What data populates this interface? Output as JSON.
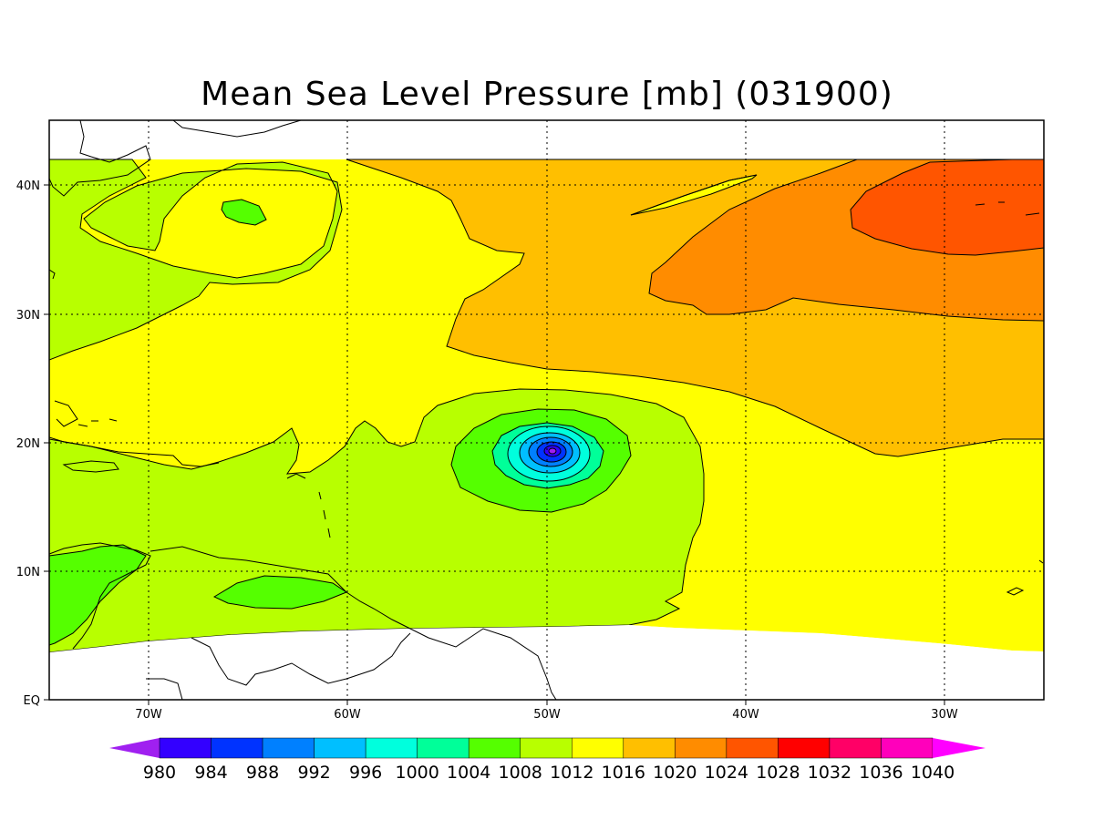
{
  "title": "Mean Sea Level Pressure [mb] (031900)",
  "lon_labels": [
    "70W",
    "60W",
    "50W",
    "40W",
    "30W"
  ],
  "lat_labels": [
    "EQ",
    "10N",
    "20N",
    "30N",
    "40N"
  ],
  "colorbar": {
    "labels": [
      "980",
      "984",
      "988",
      "992",
      "996",
      "1000",
      "1004",
      "1008",
      "1012",
      "1016",
      "1020",
      "1024",
      "1028",
      "1032",
      "1036",
      "1040"
    ],
    "colors": [
      "#a020f0",
      "#3300ff",
      "#0033ff",
      "#0080ff",
      "#00bfff",
      "#00ffdd",
      "#00ff99",
      "#55ff00",
      "#b8ff00",
      "#ffff00",
      "#ffbf00",
      "#ff8c00",
      "#ff5500",
      "#ff0000",
      "#ff0066",
      "#ff00bb",
      "#ff00ff"
    ]
  },
  "map": {
    "lon_range": [
      -75,
      -25
    ],
    "lat_range": [
      0,
      45
    ],
    "storm_center": {
      "lon": -50,
      "lat": 19
    },
    "fill_colors": {
      "1004": "#55ff00",
      "1008": "#b8ff00",
      "1012": "#ffff00",
      "1016": "#ffbf00",
      "1020": "#ff8c00",
      "1024": "#ff5500",
      "1000": "#00ff99",
      "996": "#00ffdd",
      "992": "#00bfff",
      "988": "#0080ff",
      "984": "#0033ff",
      "980": "#3300ff"
    }
  }
}
